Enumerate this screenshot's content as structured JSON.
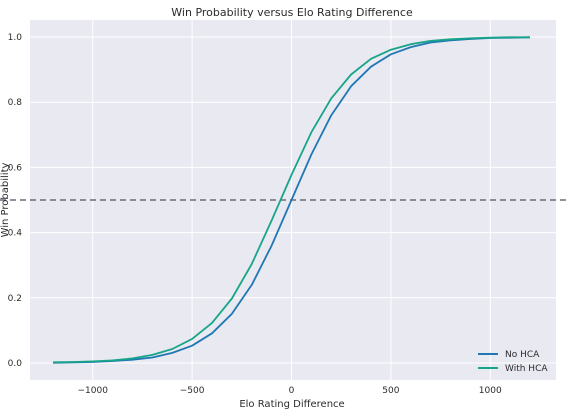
{
  "chart_data": {
    "type": "line",
    "title": "Win Probability versus Elo Rating Difference",
    "xlabel": "Elo Rating Difference",
    "ylabel": "Win Probability",
    "xlim": [
      -1200,
      1200
    ],
    "ylim": [
      0.0,
      1.0
    ],
    "x_ticks": [
      {
        "value": -1000,
        "label": "−1000"
      },
      {
        "value": -500,
        "label": "−500"
      },
      {
        "value": 0,
        "label": "0"
      },
      {
        "value": 500,
        "label": "500"
      },
      {
        "value": 1000,
        "label": "1000"
      }
    ],
    "y_ticks": [
      {
        "value": 0.0,
        "label": "0.0"
      },
      {
        "value": 0.2,
        "label": "0.2"
      },
      {
        "value": 0.4,
        "label": "0.4"
      },
      {
        "value": 0.6,
        "label": "0.6"
      },
      {
        "value": 0.8,
        "label": "0.8"
      },
      {
        "value": 1.0,
        "label": "1.0"
      }
    ],
    "grid": true,
    "legend_position": "bottom-right",
    "reference_line": {
      "y": 0.5,
      "style": "dashed",
      "color": "#6b6b7b"
    },
    "series": [
      {
        "name": "No HCA",
        "color": "#1f77b4",
        "x": [
          -1200,
          -1100,
          -1000,
          -900,
          -800,
          -700,
          -600,
          -500,
          -400,
          -300,
          -200,
          -100,
          0,
          100,
          200,
          300,
          400,
          500,
          600,
          700,
          800,
          900,
          1000,
          1100,
          1200
        ],
        "y": [
          0.001,
          0.002,
          0.003,
          0.006,
          0.01,
          0.017,
          0.031,
          0.053,
          0.091,
          0.151,
          0.24,
          0.36,
          0.5,
          0.64,
          0.76,
          0.849,
          0.909,
          0.947,
          0.969,
          0.983,
          0.99,
          0.994,
          0.997,
          0.998,
          0.999
        ]
      },
      {
        "name": "With HCA",
        "color": "#17a589",
        "x": [
          -1200,
          -1100,
          -1000,
          -900,
          -800,
          -700,
          -600,
          -500,
          -400,
          -300,
          -200,
          -100,
          0,
          100,
          200,
          300,
          400,
          500,
          600,
          700,
          800,
          900,
          1000,
          1100,
          1200
        ],
        "y": [
          0.002,
          0.003,
          0.005,
          0.008,
          0.014,
          0.025,
          0.043,
          0.074,
          0.123,
          0.198,
          0.304,
          0.437,
          0.577,
          0.708,
          0.812,
          0.885,
          0.933,
          0.961,
          0.978,
          0.988,
          0.993,
          0.996,
          0.998,
          0.999,
          0.999
        ]
      }
    ]
  }
}
